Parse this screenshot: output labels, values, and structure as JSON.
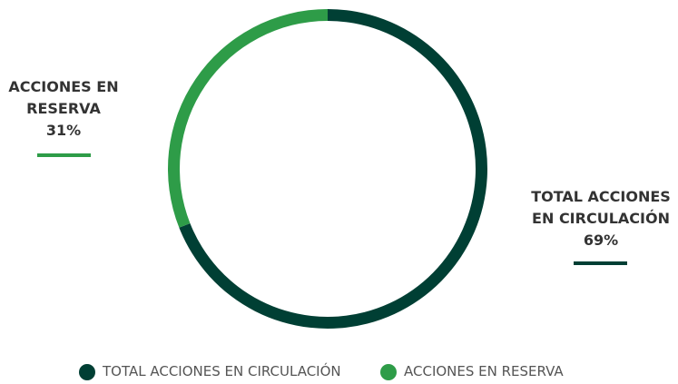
{
  "chart_data": {
    "type": "pie",
    "categories": [
      "TOTAL ACCIONES EN CIRCULACIÓN",
      "ACCIONES EN RESERVA"
    ],
    "values": [
      69,
      31
    ],
    "value_labels": [
      "69%",
      "31%"
    ],
    "colors": [
      "#003f34",
      "#2e9c48"
    ],
    "legend": "bottom"
  }
}
